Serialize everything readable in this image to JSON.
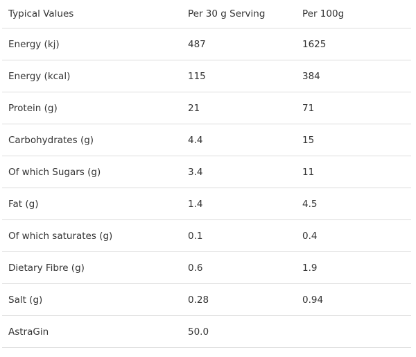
{
  "table": {
    "header": [
      "Typical Values",
      "Per 30 g Serving",
      "Per 100g"
    ],
    "rows": [
      [
        "Energy (kj)",
        "487",
        "1625"
      ],
      [
        "Energy (kcal)",
        "115",
        "384"
      ],
      [
        "Protein (g)",
        "21",
        "71"
      ],
      [
        "Carbohydrates (g)",
        "4.4",
        "15"
      ],
      [
        "Of which Sugars (g)",
        "3.4",
        "11"
      ],
      [
        "Fat (g)",
        "1.4",
        "4.5"
      ],
      [
        "Of which saturates (g)",
        "0.1",
        "0.4"
      ],
      [
        "Dietary Fibre (g)",
        "0.6",
        "1.9"
      ],
      [
        "Salt (g)",
        "0.28",
        "0.94"
      ],
      [
        "AstraGin",
        "50.0"
      ]
    ]
  }
}
